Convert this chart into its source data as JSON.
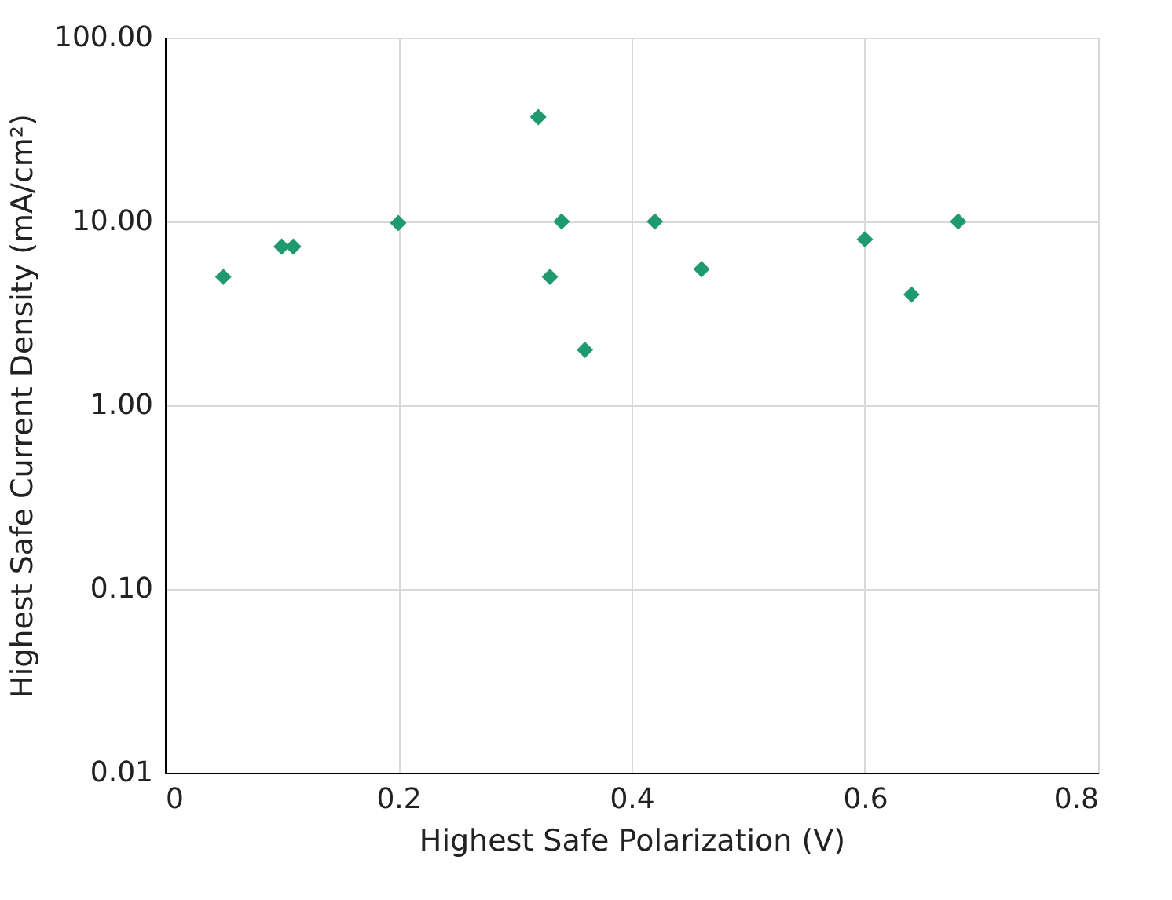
{
  "chart_data": {
    "type": "scatter",
    "xlabel": "Highest Safe Polarization (V)",
    "ylabel": "Highest Safe Current Density (mA/cm²)",
    "x": [
      0.05,
      0.1,
      0.11,
      0.2,
      0.32,
      0.33,
      0.34,
      0.36,
      0.42,
      0.46,
      0.6,
      0.64,
      0.68
    ],
    "series": [
      {
        "color": "#1f9a6e",
        "values": [
          5,
          7.3,
          7.3,
          9.8,
          37,
          5,
          10,
          2,
          10,
          5.5,
          8,
          4,
          10
        ]
      }
    ],
    "xlim": [
      0,
      0.8
    ],
    "xticks": [
      0,
      0.2,
      0.4,
      0.6,
      0.8
    ],
    "ylim": [
      0.01,
      100
    ],
    "yticks": [
      {
        "value": 0.01,
        "label": "0.01"
      },
      {
        "value": 0.1,
        "label": "0.10"
      },
      {
        "value": 1,
        "label": "1.00"
      },
      {
        "value": 10,
        "label": "10.00"
      },
      {
        "value": 100,
        "label": "100.00"
      }
    ],
    "log": "y",
    "grid": true,
    "marker": "diamond"
  }
}
